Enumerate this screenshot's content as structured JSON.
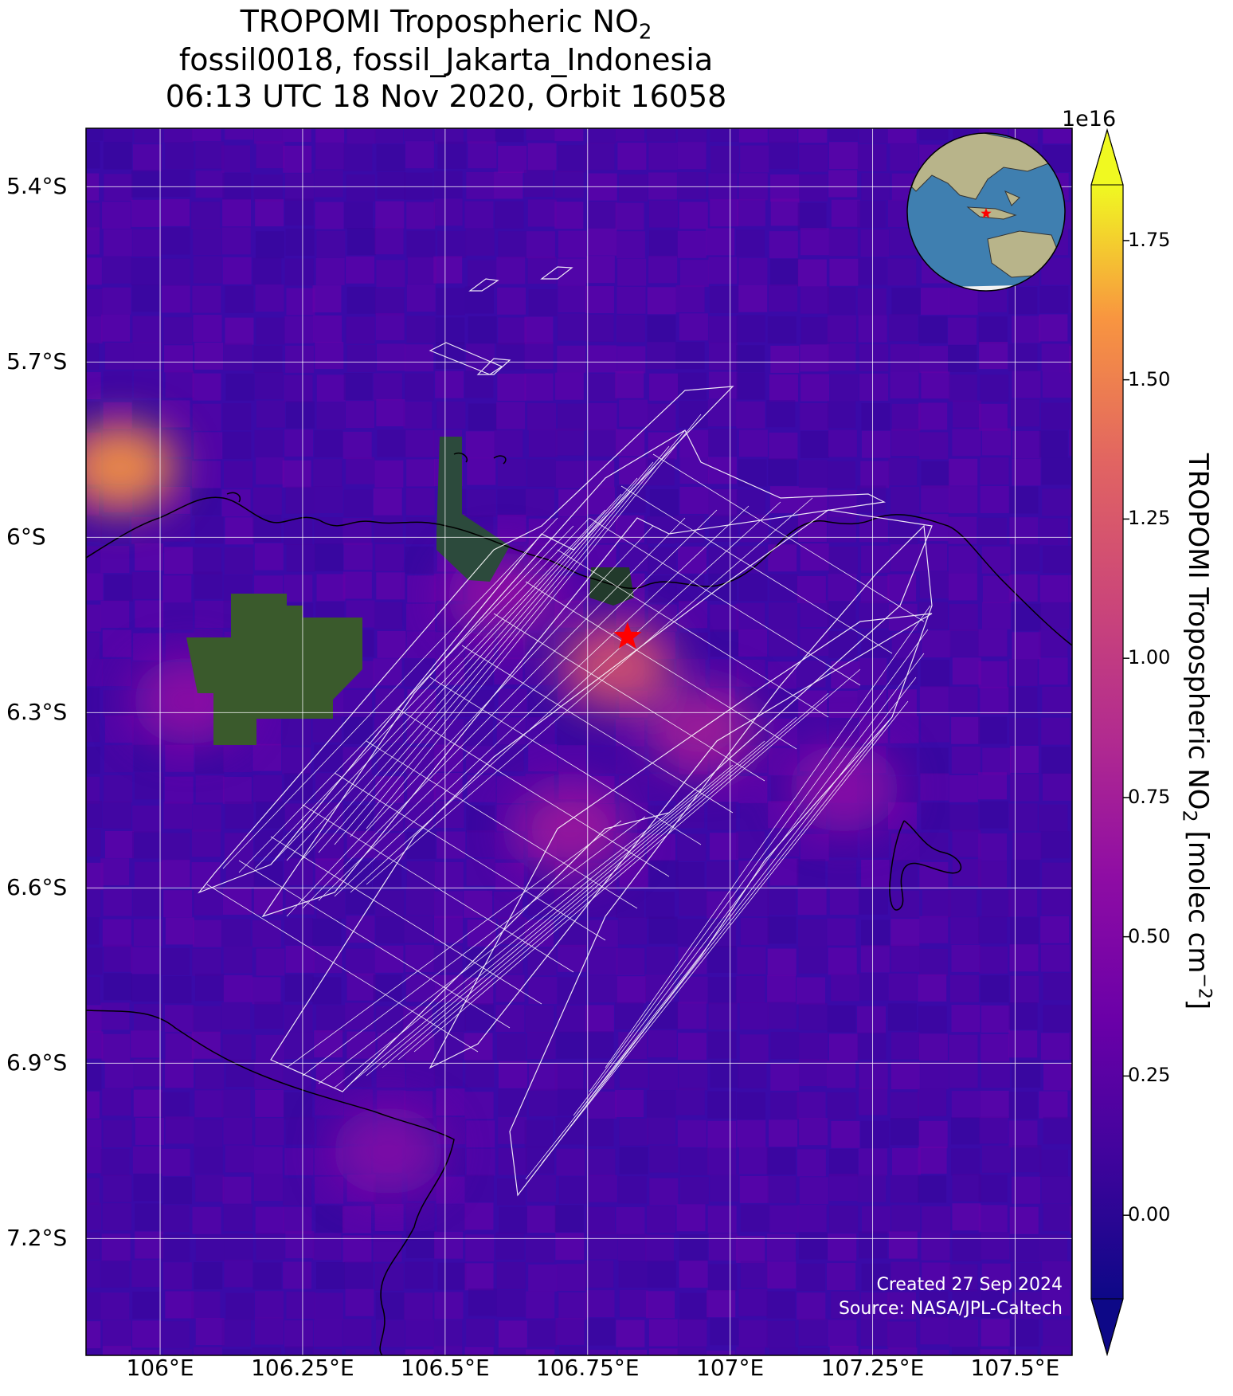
{
  "title": {
    "line1_prefix": "TROPOMI Tropospheric NO",
    "line1_sub": "2",
    "line2": "fossil0018, fossil_Jakarta_Indonesia",
    "line3": "06:13 UTC 18 Nov 2020, Orbit 16058"
  },
  "map": {
    "lon_range": [
      105.87,
      107.6
    ],
    "lat_range": [
      -7.4,
      -5.3
    ],
    "lon_ticks": [
      {
        "value": 106.0,
        "label": "106°E"
      },
      {
        "value": 106.25,
        "label": "106.25°E"
      },
      {
        "value": 106.5,
        "label": "106.5°E"
      },
      {
        "value": 106.75,
        "label": "106.75°E"
      },
      {
        "value": 107.0,
        "label": "107°E"
      },
      {
        "value": 107.25,
        "label": "107.25°E"
      },
      {
        "value": 107.5,
        "label": "107.5°E"
      }
    ],
    "lat_ticks": [
      {
        "value": -5.4,
        "label": "5.4°S"
      },
      {
        "value": -5.7,
        "label": "5.7°S"
      },
      {
        "value": -6.0,
        "label": "6°S"
      },
      {
        "value": -6.3,
        "label": "6.3°S"
      },
      {
        "value": -6.6,
        "label": "6.6°S"
      },
      {
        "value": -6.9,
        "label": "6.9°S"
      },
      {
        "value": -7.2,
        "label": "7.2°S"
      }
    ],
    "gridlines": true,
    "background_color": "#3a0aa8",
    "target_marker": {
      "lon": 106.82,
      "lat": -6.17,
      "color": "#ff0000",
      "shape": "star-icon"
    },
    "hotspots": [
      {
        "lon": 106.8,
        "lat": -6.22,
        "value": 1.2
      },
      {
        "lon": 106.95,
        "lat": -6.33,
        "value": 0.75
      },
      {
        "lon": 106.72,
        "lat": -6.5,
        "value": 0.7
      },
      {
        "lon": 105.93,
        "lat": -5.88,
        "value": 1.6
      },
      {
        "lon": 106.05,
        "lat": -6.28,
        "value": 0.6
      },
      {
        "lon": 107.2,
        "lat": -6.43,
        "value": 0.55
      },
      {
        "lon": 106.4,
        "lat": -7.05,
        "value": 0.5
      },
      {
        "lon": 106.6,
        "lat": -6.1,
        "value": 0.6
      }
    ]
  },
  "colorbar": {
    "colormap": "plasma",
    "min": -0.15,
    "max": 1.85,
    "exponent_label": "1e16",
    "ticks": [
      {
        "value": 0.0,
        "label": "0.00"
      },
      {
        "value": 0.25,
        "label": "0.25"
      },
      {
        "value": 0.5,
        "label": "0.50"
      },
      {
        "value": 0.75,
        "label": "0.75"
      },
      {
        "value": 1.0,
        "label": "1.00"
      },
      {
        "value": 1.25,
        "label": "1.25"
      },
      {
        "value": 1.5,
        "label": "1.50"
      },
      {
        "value": 1.75,
        "label": "1.75"
      }
    ],
    "label_prefix": "TROPOMI Tropospheric NO",
    "label_sub": "2",
    "label_mid": " [molec cm",
    "label_sup": "−2",
    "label_suffix": "]"
  },
  "inset_globe": {
    "ocean_color": "#3f7fb0",
    "land_color": "#b8b48a",
    "marker_color": "#ff0000"
  },
  "credit": {
    "created": "Created 27 Sep 2024",
    "source": "Source: NASA/JPL-Caltech"
  }
}
